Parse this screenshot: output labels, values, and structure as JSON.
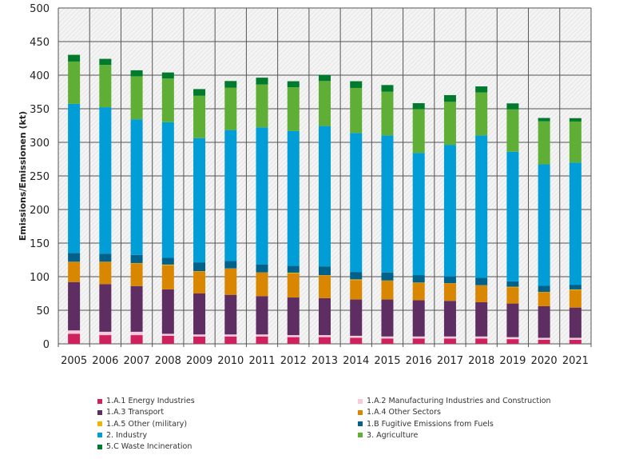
{
  "chart_data": {
    "type": "bar",
    "stacked": true,
    "ylabel": "Emissions/Emissionen (kt)",
    "xlabel": "",
    "ylim": [
      0,
      500
    ],
    "yticks": [
      0,
      50,
      100,
      150,
      200,
      250,
      300,
      350,
      400,
      450,
      500
    ],
    "grid": true,
    "legend_position": "bottom",
    "categories": [
      "2005",
      "2006",
      "2007",
      "2008",
      "2009",
      "2010",
      "2011",
      "2012",
      "2013",
      "2014",
      "2015",
      "2016",
      "2017",
      "2018",
      "2019",
      "2020",
      "2021"
    ],
    "series": [
      {
        "name": "1.A.1 Energy Industries",
        "color": "#d0215f",
        "values": [
          15,
          13,
          13,
          12,
          11,
          11,
          11,
          10,
          10,
          9,
          8,
          8,
          8,
          8,
          7,
          6,
          6
        ]
      },
      {
        "name": "1.A.2 Manufacturing Industries and Construction",
        "color": "#f7c9dc",
        "values": [
          5,
          5,
          5,
          3,
          3,
          3,
          3,
          3,
          3,
          3,
          3,
          3,
          3,
          3,
          3,
          3,
          3
        ]
      },
      {
        "name": "1.A.3 Transport",
        "color": "#5e2d61",
        "values": [
          72,
          71,
          68,
          66,
          61,
          59,
          57,
          56,
          55,
          54,
          55,
          54,
          53,
          51,
          50,
          47,
          45
        ]
      },
      {
        "name": "1.A.4 Other Sectors",
        "color": "#d98700",
        "values": [
          30,
          33,
          34,
          36,
          33,
          39,
          35,
          36,
          34,
          29,
          28,
          26,
          26,
          25,
          24,
          21,
          26
        ]
      },
      {
        "name": "1.A.5 Other (military)",
        "color": "#f0b400",
        "values": [
          0.3,
          0.3,
          0.3,
          1,
          0.3,
          0.3,
          0.3,
          1,
          0.3,
          1,
          0.3,
          0.3,
          0.3,
          0.3,
          1,
          0.3,
          1
        ]
      },
      {
        "name": "1.B Fugitive Emissions from Fuels",
        "color": "#00628b",
        "values": [
          13,
          12,
          12,
          10,
          13,
          11,
          12,
          10,
          13,
          11,
          12,
          11,
          10,
          11,
          8,
          9,
          7
        ]
      },
      {
        "name": "2. Industry",
        "color": "#009dd6",
        "values": [
          222,
          218,
          202,
          202,
          185,
          195,
          204,
          201,
          209,
          207,
          204,
          182,
          196,
          212,
          193,
          181,
          182
        ]
      },
      {
        "name": "3. Agriculture",
        "color": "#5fae36",
        "values": [
          63,
          63,
          64,
          65,
          63,
          63,
          64,
          65,
          67,
          67,
          65,
          65,
          64,
          64,
          63,
          64,
          61
        ]
      },
      {
        "name": "5.C Waste Incineration",
        "color": "#007a2d",
        "values": [
          10,
          9,
          9,
          9,
          10,
          10,
          10,
          9,
          9,
          10,
          10,
          9,
          10,
          9,
          9,
          5,
          5
        ]
      }
    ]
  }
}
